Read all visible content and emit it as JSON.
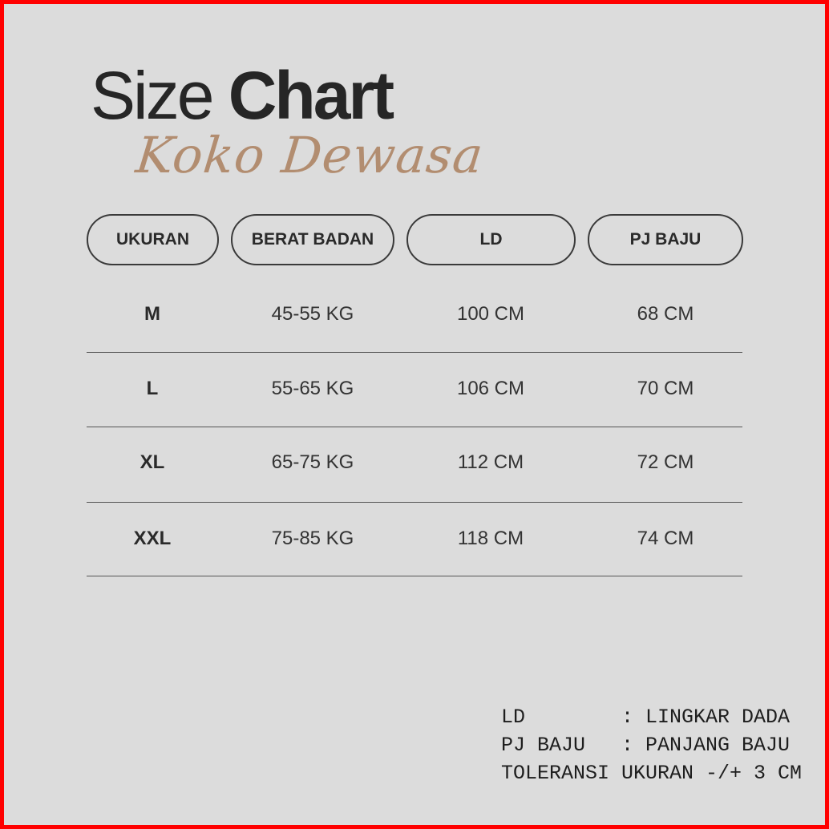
{
  "title": {
    "light": "Size",
    "bold": "Chart"
  },
  "subtitle": "Koko Dewasa",
  "colors": {
    "background": "#dcdcdc",
    "border": "#ff0000",
    "accent": "#b28d70",
    "text": "#262626"
  },
  "table": {
    "headers": [
      "UKURAN",
      "BERAT BADAN",
      "LD",
      "PJ BAJU"
    ],
    "rows": [
      [
        "M",
        "45-55 KG",
        "100 CM",
        "68 CM"
      ],
      [
        "L",
        "55-65 KG",
        "106 CM",
        "70 CM"
      ],
      [
        "XL",
        "65-75 KG",
        "112 CM",
        "72 CM"
      ],
      [
        "XXL",
        "75-85 KG",
        "118 CM",
        "74 CM"
      ]
    ]
  },
  "legend": {
    "lines": [
      "LD        : LINGKAR DADA",
      "PJ BAJU   : PANJANG BAJU",
      "TOLERANSI UKURAN -/+ 3 CM"
    ]
  }
}
